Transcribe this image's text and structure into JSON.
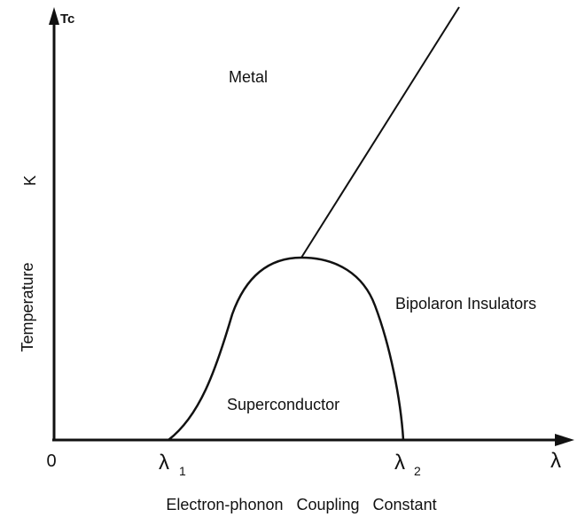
{
  "axes": {
    "y_top_label": "Tc",
    "y_title": "Temperature",
    "y_unit": "K",
    "origin_label": "0",
    "x_end_label": "λ",
    "x_title": "Electron-phonon   Coupling   Constant"
  },
  "markers": {
    "lambda1_symbol": "λ",
    "lambda1_sub": "1",
    "lambda2_symbol": "λ",
    "lambda2_sub": "2"
  },
  "regions": {
    "metal": "Metal",
    "superconductor": "Superconductor",
    "bipolaron": "Bipolaron Insulators"
  }
}
